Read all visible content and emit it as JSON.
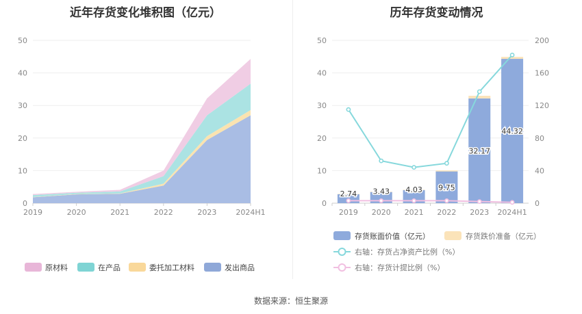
{
  "charts": {
    "left_title": "近年存货变化堆积图（亿元）",
    "right_title": "历年存货变动情况"
  },
  "source": "数据来源：恒生聚源",
  "chart_data": [
    {
      "type": "area",
      "title": "近年存货变化堆积图（亿元）",
      "categories": [
        "2019",
        "2020",
        "2021",
        "2022",
        "2023",
        "2024H1"
      ],
      "ylim": [
        0,
        50
      ],
      "yticks": [
        "0",
        "10",
        "20",
        "30",
        "40",
        "50"
      ],
      "stacked": true,
      "legend_position": "bottom",
      "series": [
        {
          "name": "发出商品",
          "color": "#a9bde4",
          "values": [
            1.8,
            2.7,
            2.9,
            5.4,
            19.4,
            27.0
          ]
        },
        {
          "name": "委托加工材料",
          "color": "#fae3b0",
          "values": [
            0.1,
            0.1,
            0.1,
            0.6,
            1.2,
            1.6
          ]
        },
        {
          "name": "在产品",
          "color": "#abe3e3",
          "values": [
            0.6,
            0.4,
            0.6,
            2.3,
            6.4,
            8.1
          ]
        },
        {
          "name": "原材料",
          "color": "#f0cde4",
          "values": [
            0.3,
            0.3,
            0.5,
            1.7,
            5.2,
            7.6
          ]
        }
      ],
      "legend": [
        {
          "name": "原材料",
          "color": "#e8b6d8"
        },
        {
          "name": "在产品",
          "color": "#7fd4d4"
        },
        {
          "name": "委托加工材料",
          "color": "#f9d89a"
        },
        {
          "name": "发出商品",
          "color": "#8fa8d8"
        }
      ]
    },
    {
      "type": "bar",
      "title": "历年存货变动情况",
      "categories": [
        "2019",
        "2020",
        "2021",
        "2022",
        "2023",
        "2024H1"
      ],
      "ylim": [
        0,
        50
      ],
      "yticks": [
        "0",
        "10",
        "20",
        "30",
        "40",
        "50"
      ],
      "y2lim": [
        0,
        200
      ],
      "y2ticks": [
        "0",
        "40",
        "80",
        "120",
        "160",
        "200"
      ],
      "stacked": true,
      "legend_position": "bottom",
      "series": [
        {
          "name": "存货账面价值（亿元）",
          "color": "#8eaadc",
          "axis": "left",
          "kind": "bar",
          "values": [
            2.74,
            3.43,
            4.03,
            9.75,
            32.17,
            44.32
          ],
          "labels": [
            "2.74",
            "3.43",
            "4.03",
            "9.75",
            "32.17",
            "44.32"
          ]
        },
        {
          "name": "存货跌价准备（亿元）",
          "color": "#fbe3b9",
          "axis": "left",
          "kind": "bar",
          "values": [
            0.1,
            0.1,
            0.1,
            0.3,
            0.8,
            0.6
          ]
        },
        {
          "name": "右轴：存货占净资产比例（%）",
          "color": "#86d8dc",
          "axis": "right",
          "kind": "line",
          "values": [
            115,
            52,
            44,
            49,
            137,
            182
          ]
        },
        {
          "name": "右轴：存货计提比例（%）",
          "color": "#f1bfe1",
          "axis": "right",
          "kind": "line",
          "values": [
            3,
            3,
            3,
            3,
            2,
            1
          ]
        }
      ]
    }
  ]
}
